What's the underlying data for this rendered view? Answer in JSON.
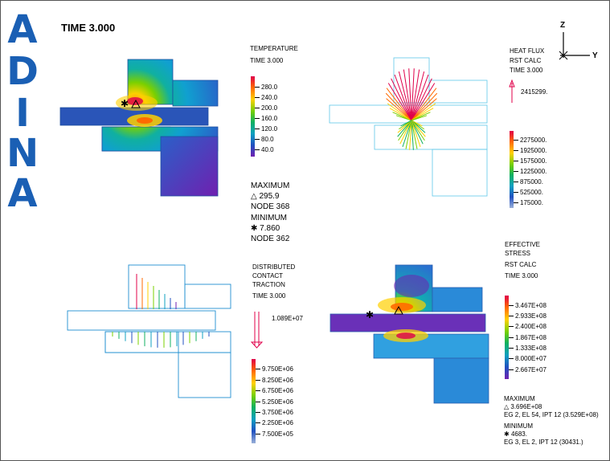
{
  "logo": {
    "letters": [
      "A",
      "D",
      "I",
      "N",
      "A"
    ]
  },
  "header": {
    "time_title": "TIME 3.000"
  },
  "axes_triad": {
    "z_label": "Z",
    "y_label": "Y"
  },
  "temperature": {
    "title": "TEMPERATURE",
    "time": "TIME 3.000",
    "legend_values": [
      "280.0",
      "240.0",
      "200.0",
      "160.0",
      "120.0",
      "80.0",
      "40.0"
    ],
    "maximum_label": "MAXIMUM",
    "maximum_value": "295.9",
    "maximum_node": "NODE 368",
    "minimum_label": "MINIMUM",
    "minimum_value": "7.860",
    "minimum_node": "NODE 362"
  },
  "heat_flux": {
    "title": "HEAT FLUX",
    "subtitle": "RST CALC",
    "time": "TIME 3.000",
    "arrow_value": "2415299.",
    "legend_values": [
      "2275000.",
      "1925000.",
      "1575000.",
      "1225000.",
      "875000.",
      "525000.",
      "175000."
    ]
  },
  "traction": {
    "title_line1": "DISTRIBUTED",
    "title_line2": "CONTACT",
    "title_line3": "TRACTION",
    "time": "TIME 3.000",
    "arrow_value": "1.089E+07",
    "legend_values": [
      "9.750E+06",
      "8.250E+06",
      "6.750E+06",
      "5.250E+06",
      "3.750E+06",
      "2.250E+06",
      "7.500E+05"
    ]
  },
  "stress": {
    "title_line1": "EFFECTIVE",
    "title_line2": "STRESS",
    "subtitle": "RST CALC",
    "time": "TIME 3.000",
    "legend_values": [
      "3.467E+08",
      "2.933E+08",
      "2.400E+08",
      "1.867E+08",
      "1.333E+08",
      "8.000E+07",
      "2.667E+07"
    ],
    "maximum_label": "MAXIMUM",
    "maximum_value": "3.696E+08",
    "maximum_location": "EG 2, EL 54, IPT 12 (3.529E+08)",
    "minimum_label": "MINIMUM",
    "minimum_value": "4683.",
    "minimum_location": "EG 3, EL 2, IPT 12 (30431.)"
  },
  "colors": {
    "spectrum": [
      "#e0004a",
      "#ff6a00",
      "#ffd000",
      "#7ad000",
      "#10b060",
      "#10a0c0",
      "#2050c0",
      "#7020b0"
    ],
    "logo": "#1a5fb4",
    "outline": "#1f8fd0"
  }
}
